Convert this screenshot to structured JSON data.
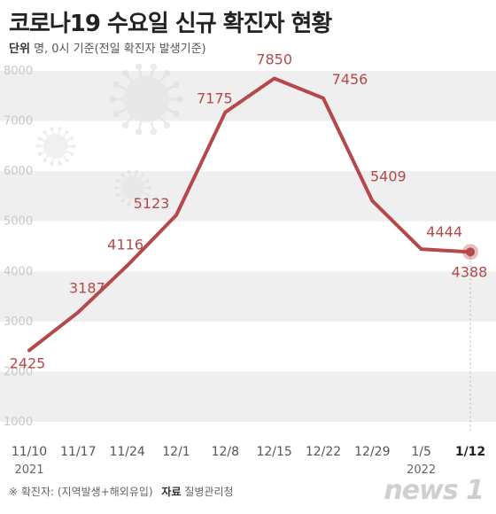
{
  "header": {
    "title": "코로나19 수요일 신규 확진자 현황",
    "unit_label": "단위",
    "unit_text": "명, 0시 기준(전일 확진자 발생기준)"
  },
  "footer": {
    "note": "※ 확진자: (지역발생+해외유입)",
    "source_label": "자료",
    "source": "질병관리청"
  },
  "logo": {
    "text": "news 1"
  },
  "colors": {
    "line": "#b5484a",
    "band": "#efefef",
    "yaxis_text": "#c8c8c8",
    "label_text": "#b5484a"
  },
  "chart_data": {
    "type": "line",
    "categories": [
      "11/10",
      "11/17",
      "11/24",
      "12/1",
      "12/8",
      "12/15",
      "12/22",
      "12/29",
      "1/5",
      "1/12"
    ],
    "year_labels": [
      {
        "index": 0,
        "text": "2021"
      },
      {
        "index": 8,
        "text": "2022"
      }
    ],
    "values": [
      2425,
      3187,
      4116,
      5123,
      7175,
      7850,
      7456,
      5409,
      4444,
      4388
    ],
    "yticks": [
      1000,
      2000,
      3000,
      4000,
      5000,
      6000,
      7000,
      8000
    ],
    "ylim": [
      1000,
      8000
    ],
    "grid": "horizontal bands",
    "highlight_last": true
  }
}
